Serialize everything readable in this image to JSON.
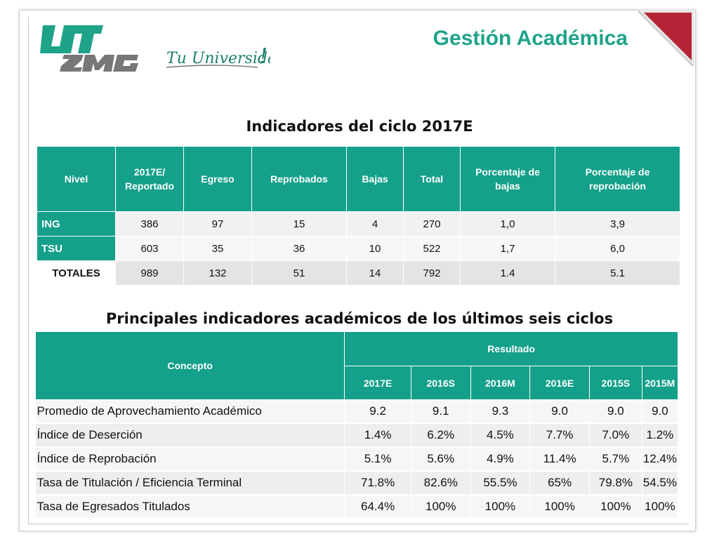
{
  "header": {
    "title": "Gestión Académica",
    "logo_text": "UTZMG",
    "logo_tagline": "Tu Universidad !",
    "brand_color": "#14a08a",
    "corner_color": "#b52436"
  },
  "table1": {
    "title": "Indicadores del ciclo 2017E",
    "headers": [
      "Nivel",
      "2017E/ Reportado",
      "Egreso",
      "Reprobados",
      "Bajas",
      "Total",
      "Porcentaje de bajas",
      "Porcentaje de reprobación"
    ],
    "rows": [
      [
        "ING",
        "386",
        "97",
        "15",
        "4",
        "270",
        "1,0",
        "3,9"
      ],
      [
        "TSU",
        "603",
        "35",
        "36",
        "10",
        "522",
        "1,7",
        "6,0"
      ],
      [
        "TOTALES",
        "989",
        "132",
        "51",
        "14",
        "792",
        "1.4",
        "5.1"
      ]
    ]
  },
  "table2": {
    "title": "Principales indicadores académicos de los últimos seis ciclos",
    "concept_header": "Concepto",
    "result_header": "Resultado",
    "years": [
      "2017E",
      "2016S",
      "2016M",
      "2016E",
      "2015S",
      "2015M"
    ],
    "rows": [
      [
        "Promedio de Aprovechamiento Académico",
        "9.2",
        "9.1",
        "9.3",
        "9.0",
        "9.0",
        "9.0"
      ],
      [
        "Índice de Deserción",
        "1.4%",
        "6.2%",
        "4.5%",
        "7.7%",
        "7.0%",
        "1.2%"
      ],
      [
        "Índice de Reprobación",
        "5.1%",
        "5.6%",
        "4.9%",
        "11.4%",
        "5.7%",
        "12.4%"
      ],
      [
        "Tasa de Titulación / Eficiencia Terminal",
        "71.8%",
        "82.6%",
        "55.5%",
        "65%",
        "79.8%",
        "54.5%"
      ],
      [
        "Tasa de Egresados  Titulados",
        "64.4%",
        "100%",
        "100%",
        "100%",
        "100%",
        "100%"
      ]
    ]
  }
}
